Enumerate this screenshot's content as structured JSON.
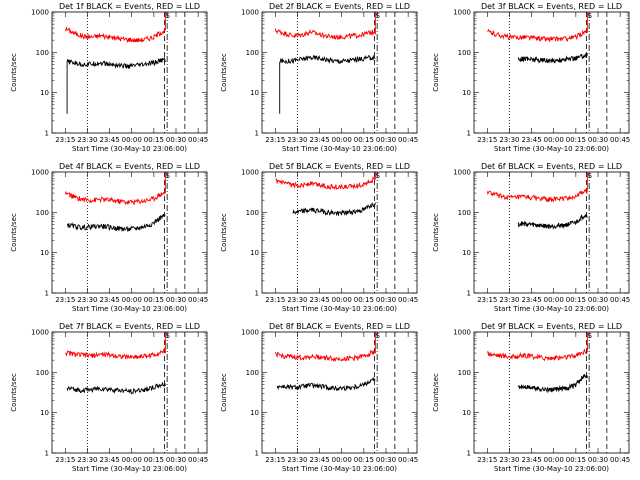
{
  "figure": {
    "background": "#ffffff",
    "series_colors": {
      "events": "#000000",
      "lld": "#ff0000"
    }
  },
  "chart_data": [
    {
      "type": "line",
      "title": "Det 1f BLACK = Events, RED = LLD",
      "ylabel": "Counts/sec",
      "xlabel": "Start Time (30-May-10 23:06:00)",
      "ylog": true,
      "ylim": [
        1,
        1000
      ],
      "x_ticks": [
        "23:15",
        "23:30",
        "23:45",
        "00:00",
        "00:15",
        "00:30",
        "00:45"
      ],
      "y_ticks": [
        "1",
        "10",
        "100",
        "1000"
      ],
      "x": [
        23.25,
        23.35,
        23.45,
        23.55,
        23.65,
        23.75,
        23.85,
        23.95,
        24.05,
        24.15,
        24.25,
        24.35
      ],
      "series": [
        {
          "key": "lld",
          "color": "#ff0000",
          "start": 23.25,
          "end": 24.38,
          "values": [
            390,
            300,
            250,
            240,
            260,
            240,
            220,
            210,
            200,
            210,
            240,
            330
          ],
          "spike": 1000
        },
        {
          "key": "events",
          "color": "#000000",
          "start": 23.27,
          "end": 24.38,
          "values": [
            60,
            55,
            50,
            52,
            55,
            50,
            48,
            45,
            47,
            50,
            55,
            65
          ],
          "dropout": 3
        }
      ],
      "annotations": {
        "dotted": 23.5,
        "dashed": [
          24.37,
          24.6
        ],
        "dashdot": 24.4
      },
      "marker": "S"
    },
    {
      "type": "line",
      "title": "Det 2f BLACK = Events, RED = LLD",
      "ylabel": "Counts/sec",
      "xlabel": "Start Time (30-May-10 23:06:00)",
      "ylog": true,
      "ylim": [
        1,
        1000
      ],
      "x_ticks": [
        "23:15",
        "23:30",
        "23:45",
        "00:00",
        "00:15",
        "00:30",
        "00:45"
      ],
      "y_ticks": [
        "1",
        "10",
        "100",
        "1000"
      ],
      "x": [
        23.25,
        23.35,
        23.45,
        23.55,
        23.65,
        23.75,
        23.85,
        23.95,
        24.05,
        24.15,
        24.25,
        24.35
      ],
      "series": [
        {
          "key": "lld",
          "color": "#ff0000",
          "start": 23.25,
          "end": 24.38,
          "values": [
            350,
            300,
            260,
            270,
            320,
            280,
            250,
            240,
            250,
            260,
            280,
            320
          ],
          "spike": 1000
        },
        {
          "key": "events",
          "color": "#000000",
          "start": 23.3,
          "end": 24.38,
          "values": [
            65,
            60,
            62,
            68,
            75,
            72,
            65,
            60,
            62,
            66,
            70,
            75
          ],
          "dropout": 3
        }
      ],
      "annotations": {
        "dotted": 23.5,
        "dashed": [
          24.37,
          24.6
        ],
        "dashdot": 24.4
      },
      "marker": "S"
    },
    {
      "type": "line",
      "title": "Det 3f BLACK = Events, RED = LLD",
      "ylabel": "Counts/sec",
      "xlabel": "Start Time (30-May-10 23:06:00)",
      "ylog": true,
      "ylim": [
        1,
        1000
      ],
      "x_ticks": [
        "23:15",
        "23:30",
        "23:45",
        "00:00",
        "00:15",
        "00:30",
        "00:45"
      ],
      "y_ticks": [
        "1",
        "10",
        "100",
        "1000"
      ],
      "x": [
        23.25,
        23.35,
        23.45,
        23.55,
        23.65,
        23.75,
        23.85,
        23.95,
        24.05,
        24.15,
        24.25,
        24.35
      ],
      "series": [
        {
          "key": "lld",
          "color": "#ff0000",
          "start": 23.25,
          "end": 24.38,
          "values": [
            330,
            280,
            250,
            230,
            240,
            230,
            220,
            210,
            215,
            220,
            240,
            320
          ],
          "spike": 1000
        },
        {
          "key": "events",
          "color": "#000000",
          "start": 23.6,
          "end": 24.38,
          "values": [
            70,
            68,
            65,
            66,
            70,
            68,
            65,
            62,
            64,
            68,
            72,
            85
          ]
        }
      ],
      "annotations": {
        "dotted": 23.5,
        "dashed": [
          24.37,
          24.6
        ],
        "dashdot": 24.4
      },
      "marker": "S"
    },
    {
      "type": "line",
      "title": "Det 4f BLACK = Events, RED = LLD",
      "ylabel": "Counts/sec",
      "xlabel": "Start Time (30-May-10 23:06:00)",
      "ylog": true,
      "ylim": [
        1,
        1000
      ],
      "x_ticks": [
        "23:15",
        "23:30",
        "23:45",
        "00:00",
        "00:15",
        "00:30",
        "00:45"
      ],
      "y_ticks": [
        "1",
        "10",
        "100",
        "1000"
      ],
      "x": [
        23.25,
        23.35,
        23.45,
        23.55,
        23.65,
        23.75,
        23.85,
        23.95,
        24.05,
        24.15,
        24.25,
        24.35
      ],
      "series": [
        {
          "key": "lld",
          "color": "#ff0000",
          "start": 23.25,
          "end": 24.38,
          "values": [
            300,
            240,
            210,
            200,
            210,
            200,
            190,
            180,
            185,
            195,
            220,
            300
          ],
          "spike": 1000
        },
        {
          "key": "events",
          "color": "#000000",
          "start": 23.27,
          "end": 24.38,
          "values": [
            50,
            45,
            42,
            44,
            46,
            43,
            40,
            38,
            40,
            45,
            55,
            80
          ]
        }
      ],
      "annotations": {
        "dotted": 23.5,
        "dashed": [
          24.37,
          24.6
        ],
        "dashdot": 24.4
      },
      "marker": "S"
    },
    {
      "type": "line",
      "title": "Det 5f BLACK = Events, RED = LLD",
      "ylabel": "Counts/sec",
      "xlabel": "Start Time (30-May-10 23:06:00)",
      "ylog": true,
      "ylim": [
        1,
        1000
      ],
      "x_ticks": [
        "23:15",
        "23:30",
        "23:45",
        "00:00",
        "00:15",
        "00:30",
        "00:45"
      ],
      "y_ticks": [
        "1",
        "10",
        "100",
        "1000"
      ],
      "x": [
        23.25,
        23.35,
        23.45,
        23.55,
        23.65,
        23.75,
        23.85,
        23.95,
        24.05,
        24.15,
        24.25,
        24.35
      ],
      "series": [
        {
          "key": "lld",
          "color": "#ff0000",
          "start": 23.25,
          "end": 24.38,
          "values": [
            600,
            520,
            470,
            480,
            520,
            480,
            440,
            420,
            430,
            450,
            500,
            650
          ],
          "spike": 1000
        },
        {
          "key": "events",
          "color": "#000000",
          "start": 23.45,
          "end": 24.38,
          "values": [
            110,
            105,
            100,
            105,
            115,
            110,
            100,
            95,
            98,
            105,
            115,
            160
          ]
        }
      ],
      "annotations": {
        "dotted": 23.5,
        "dashed": [
          24.37,
          24.6
        ],
        "dashdot": 24.4
      },
      "marker": "S"
    },
    {
      "type": "line",
      "title": "Det 6f BLACK = Events, RED = LLD",
      "ylabel": "Counts/sec",
      "xlabel": "Start Time (30-May-10 23:06:00)",
      "ylog": true,
      "ylim": [
        1,
        1000
      ],
      "x_ticks": [
        "23:15",
        "23:30",
        "23:45",
        "00:00",
        "00:15",
        "00:30",
        "00:45"
      ],
      "y_ticks": [
        "1",
        "10",
        "100",
        "1000"
      ],
      "x": [
        23.25,
        23.35,
        23.45,
        23.55,
        23.65,
        23.75,
        23.85,
        23.95,
        24.05,
        24.15,
        24.25,
        24.35
      ],
      "series": [
        {
          "key": "lld",
          "color": "#ff0000",
          "start": 23.25,
          "end": 24.38,
          "values": [
            320,
            270,
            240,
            230,
            240,
            230,
            220,
            210,
            215,
            225,
            250,
            330
          ],
          "spike": 1000
        },
        {
          "key": "events",
          "color": "#000000",
          "start": 23.6,
          "end": 24.38,
          "values": [
            52,
            50,
            48,
            50,
            52,
            50,
            47,
            45,
            47,
            50,
            56,
            85
          ]
        }
      ],
      "annotations": {
        "dotted": 23.5,
        "dashed": [
          24.37,
          24.6
        ],
        "dashdot": 24.4
      },
      "marker": "S"
    },
    {
      "type": "line",
      "title": "Det 7f BLACK = Events, RED = LLD",
      "ylabel": "Counts/sec",
      "xlabel": "Start Time (30-May-10 23:06:00)",
      "ylog": true,
      "ylim": [
        1,
        1000
      ],
      "x_ticks": [
        "23:15",
        "23:30",
        "23:45",
        "00:00",
        "00:15",
        "00:30",
        "00:45"
      ],
      "y_ticks": [
        "1",
        "10",
        "100",
        "1000"
      ],
      "x": [
        23.25,
        23.35,
        23.45,
        23.55,
        23.65,
        23.75,
        23.85,
        23.95,
        24.05,
        24.15,
        24.25,
        24.35
      ],
      "series": [
        {
          "key": "lld",
          "color": "#ff0000",
          "start": 23.25,
          "end": 24.38,
          "values": [
            310,
            280,
            270,
            260,
            280,
            270,
            255,
            240,
            245,
            255,
            270,
            330
          ],
          "spike": 1000
        },
        {
          "key": "events",
          "color": "#000000",
          "start": 23.27,
          "end": 24.38,
          "values": [
            40,
            38,
            36,
            38,
            40,
            38,
            36,
            34,
            35,
            38,
            42,
            50
          ]
        }
      ],
      "annotations": {
        "dotted": 23.5,
        "dashed": [
          24.37,
          24.6
        ],
        "dashdot": 24.4
      },
      "marker": "S"
    },
    {
      "type": "line",
      "title": "Det 8f BLACK = Events, RED = LLD",
      "ylabel": "Counts/sec",
      "xlabel": "Start Time (30-May-10 23:06:00)",
      "ylog": true,
      "ylim": [
        1,
        1000
      ],
      "x_ticks": [
        "23:15",
        "23:30",
        "23:45",
        "00:00",
        "00:15",
        "00:30",
        "00:45"
      ],
      "y_ticks": [
        "1",
        "10",
        "100",
        "1000"
      ],
      "x": [
        23.25,
        23.35,
        23.45,
        23.55,
        23.65,
        23.75,
        23.85,
        23.95,
        24.05,
        24.15,
        24.25,
        24.35
      ],
      "series": [
        {
          "key": "lld",
          "color": "#ff0000",
          "start": 23.25,
          "end": 24.38,
          "values": [
            280,
            250,
            240,
            230,
            250,
            240,
            225,
            215,
            220,
            230,
            250,
            320
          ],
          "spike": 1000
        },
        {
          "key": "events",
          "color": "#000000",
          "start": 23.27,
          "end": 24.38,
          "values": [
            45,
            44,
            42,
            44,
            48,
            45,
            42,
            40,
            41,
            44,
            50,
            65
          ]
        }
      ],
      "annotations": {
        "dotted": 23.5,
        "dashed": [
          24.37,
          24.6
        ],
        "dashdot": 24.4
      },
      "marker": "S"
    },
    {
      "type": "line",
      "title": "Det 9f BLACK = Events, RED = LLD",
      "ylabel": "Counts/sec",
      "xlabel": "Start Time (30-May-10 23:06:00)",
      "ylog": true,
      "ylim": [
        1,
        1000
      ],
      "x_ticks": [
        "23:15",
        "23:30",
        "23:45",
        "00:00",
        "00:15",
        "00:30",
        "00:45"
      ],
      "y_ticks": [
        "1",
        "10",
        "100",
        "1000"
      ],
      "x": [
        23.25,
        23.35,
        23.45,
        23.55,
        23.65,
        23.75,
        23.85,
        23.95,
        24.05,
        24.15,
        24.25,
        24.35
      ],
      "series": [
        {
          "key": "lld",
          "color": "#ff0000",
          "start": 23.25,
          "end": 24.38,
          "values": [
            300,
            270,
            255,
            245,
            260,
            250,
            235,
            225,
            230,
            240,
            260,
            330
          ],
          "spike": 1000
        },
        {
          "key": "events",
          "color": "#000000",
          "start": 23.6,
          "end": 24.38,
          "values": [
            42,
            40,
            38,
            40,
            44,
            42,
            39,
            37,
            38,
            41,
            48,
            80
          ]
        }
      ],
      "annotations": {
        "dotted": 23.5,
        "dashed": [
          24.37,
          24.6
        ],
        "dashdot": 24.4
      },
      "marker": "S"
    }
  ]
}
